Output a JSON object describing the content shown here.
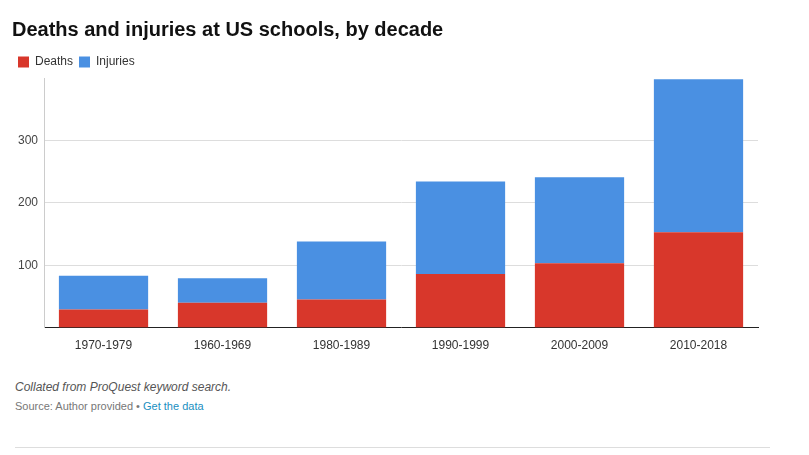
{
  "chart_data": {
    "type": "bar",
    "title": "Deaths and injuries at US schools, by decade",
    "categories": [
      "1970-1979",
      "1960-1969",
      "1980-1989",
      "1990-1999",
      "2000-2009",
      "2010-2018"
    ],
    "series": [
      {
        "name": "Deaths",
        "color": "#d8372b",
        "values": [
          29,
          40,
          45,
          86,
          103,
          153
        ]
      },
      {
        "name": "Injuries",
        "color": "#4a90e2",
        "values": [
          54,
          39,
          93,
          148,
          138,
          245
        ]
      }
    ],
    "ylim": [
      0,
      400
    ],
    "yticks": [
      100,
      200,
      300
    ],
    "stacked": true,
    "grid": true,
    "legend": "top-left",
    "caption": "Collated from ProQuest keyword search.",
    "source": [
      "Source: Author provided",
      "•",
      "Get the data"
    ]
  }
}
